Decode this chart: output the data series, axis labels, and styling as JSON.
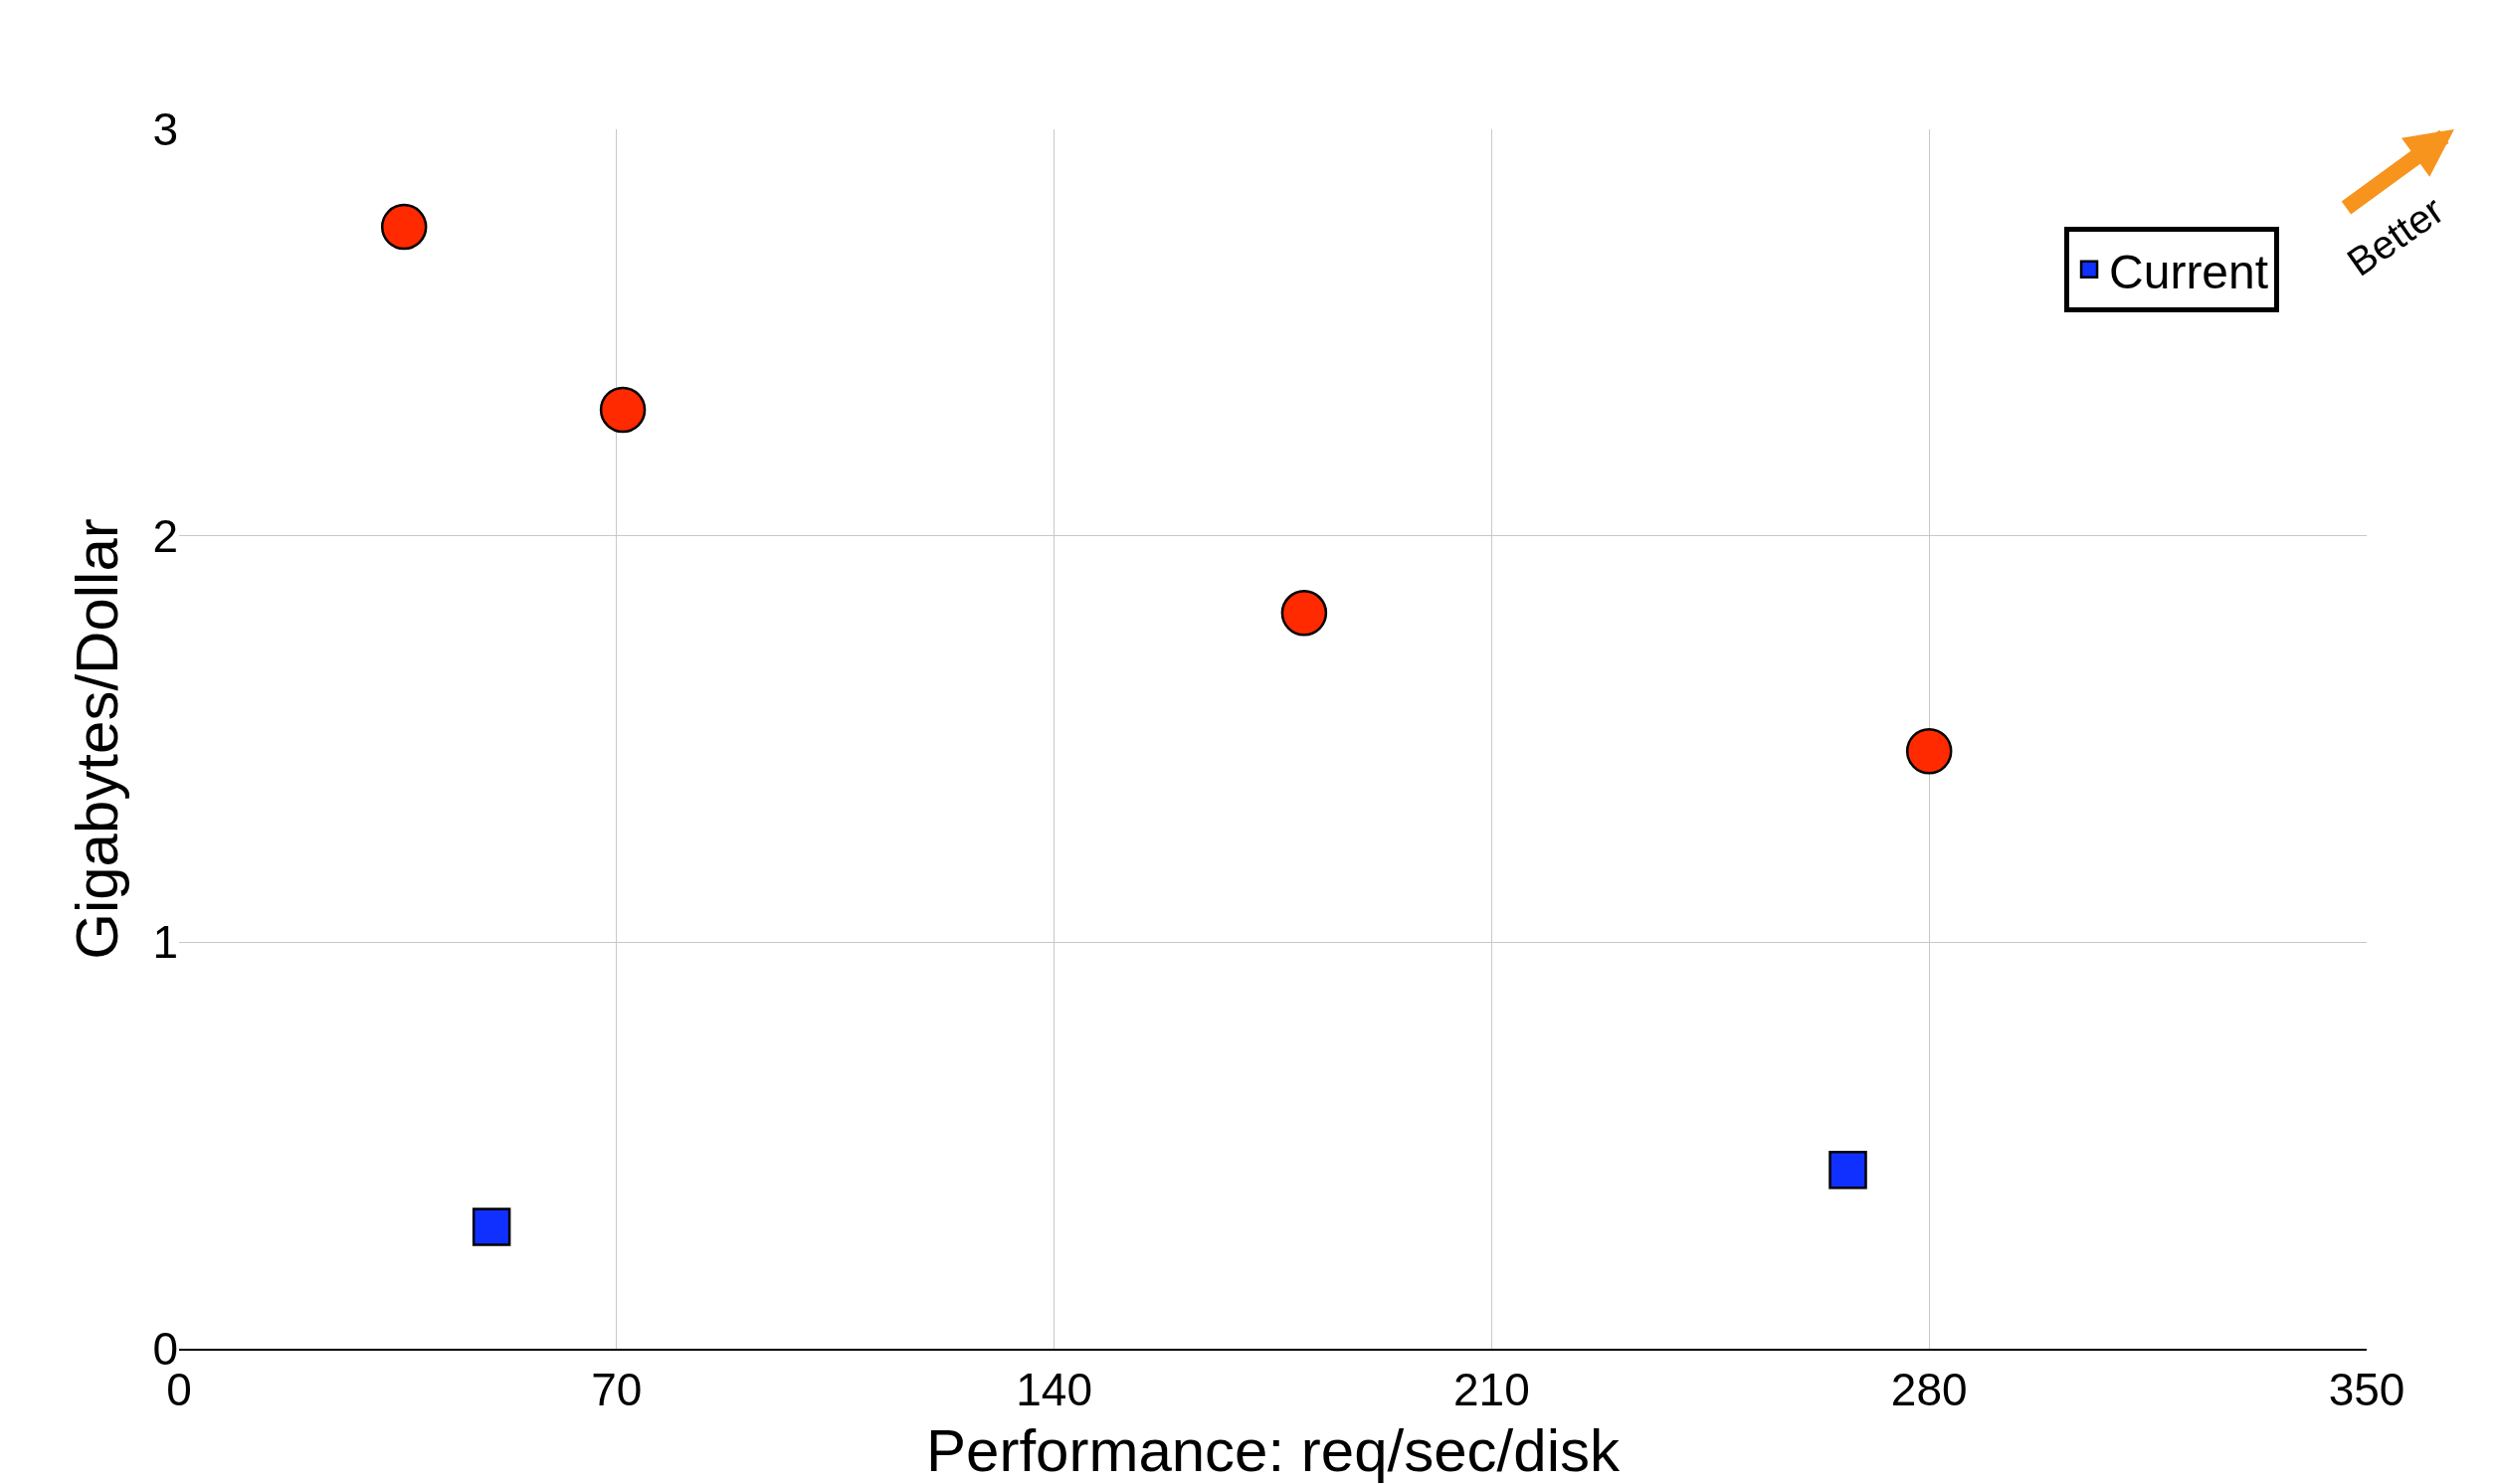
{
  "chart_data": {
    "type": "scatter",
    "xlabel": "Performance: req/sec/disk",
    "ylabel": "Gigabytes/Dollar",
    "xlim": [
      0,
      350
    ],
    "xticks": [
      0,
      70,
      140,
      210,
      280,
      350
    ],
    "ylim": [
      0,
      3
    ],
    "yticks": [
      0,
      1,
      2,
      3
    ],
    "grid": true,
    "legend": "top right",
    "series": [
      {
        "color": "#ff2a00",
        "marker": "circle",
        "x": [
          36,
          71,
          180,
          280
        ],
        "values": [
          2.76,
          2.31,
          1.81,
          1.47
        ]
      },
      {
        "name": "Current",
        "color": "#1030ff",
        "marker": "square",
        "x": [
          50,
          267
        ],
        "values": [
          0.3,
          0.44
        ]
      }
    ],
    "annotations": [
      "Better"
    ]
  }
}
